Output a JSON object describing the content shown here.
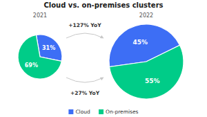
{
  "chart_data": [
    {
      "type": "pie",
      "title": "Cloud vs. on-premises clusters",
      "subtitle": "2021",
      "categories": [
        "Cloud",
        "On-premises"
      ],
      "values": [
        31,
        69
      ],
      "value_labels": [
        "31%",
        "69%"
      ],
      "colors": [
        "#3d6ef5",
        "#00cc88"
      ],
      "data_labels": true,
      "legend": "bottom"
    },
    {
      "type": "pie",
      "subtitle": "2022",
      "categories": [
        "Cloud",
        "On-premises"
      ],
      "values": [
        45,
        55
      ],
      "value_labels": [
        "45%",
        "55%"
      ],
      "colors": [
        "#3d6ef5",
        "#00cc88"
      ],
      "data_labels": true,
      "annotations": [
        "+127% YoY",
        "+27% YoY"
      ]
    }
  ]
}
